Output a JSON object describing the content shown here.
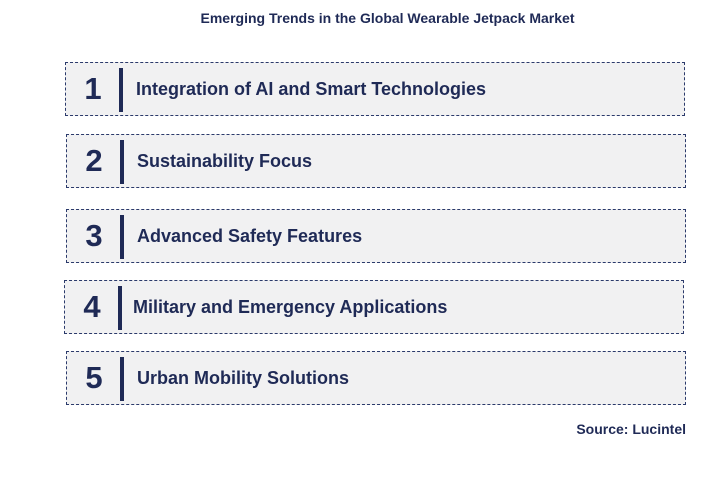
{
  "title": "Emerging Trends in the Global Wearable Jetpack Market",
  "trends": [
    {
      "number": "1",
      "label": "Integration of AI and Smart Technologies"
    },
    {
      "number": "2",
      "label": "Sustainability Focus"
    },
    {
      "number": "3",
      "label": "Advanced Safety Features"
    },
    {
      "number": "4",
      "label": "Military and Emergency Applications"
    },
    {
      "number": "5",
      "label": "Urban Mobility Solutions"
    }
  ],
  "source": "Source: Lucintel",
  "colors": {
    "text": "#1f2a56",
    "box_fill": "#f1f1f2",
    "box_border": "#2b3a6b"
  }
}
